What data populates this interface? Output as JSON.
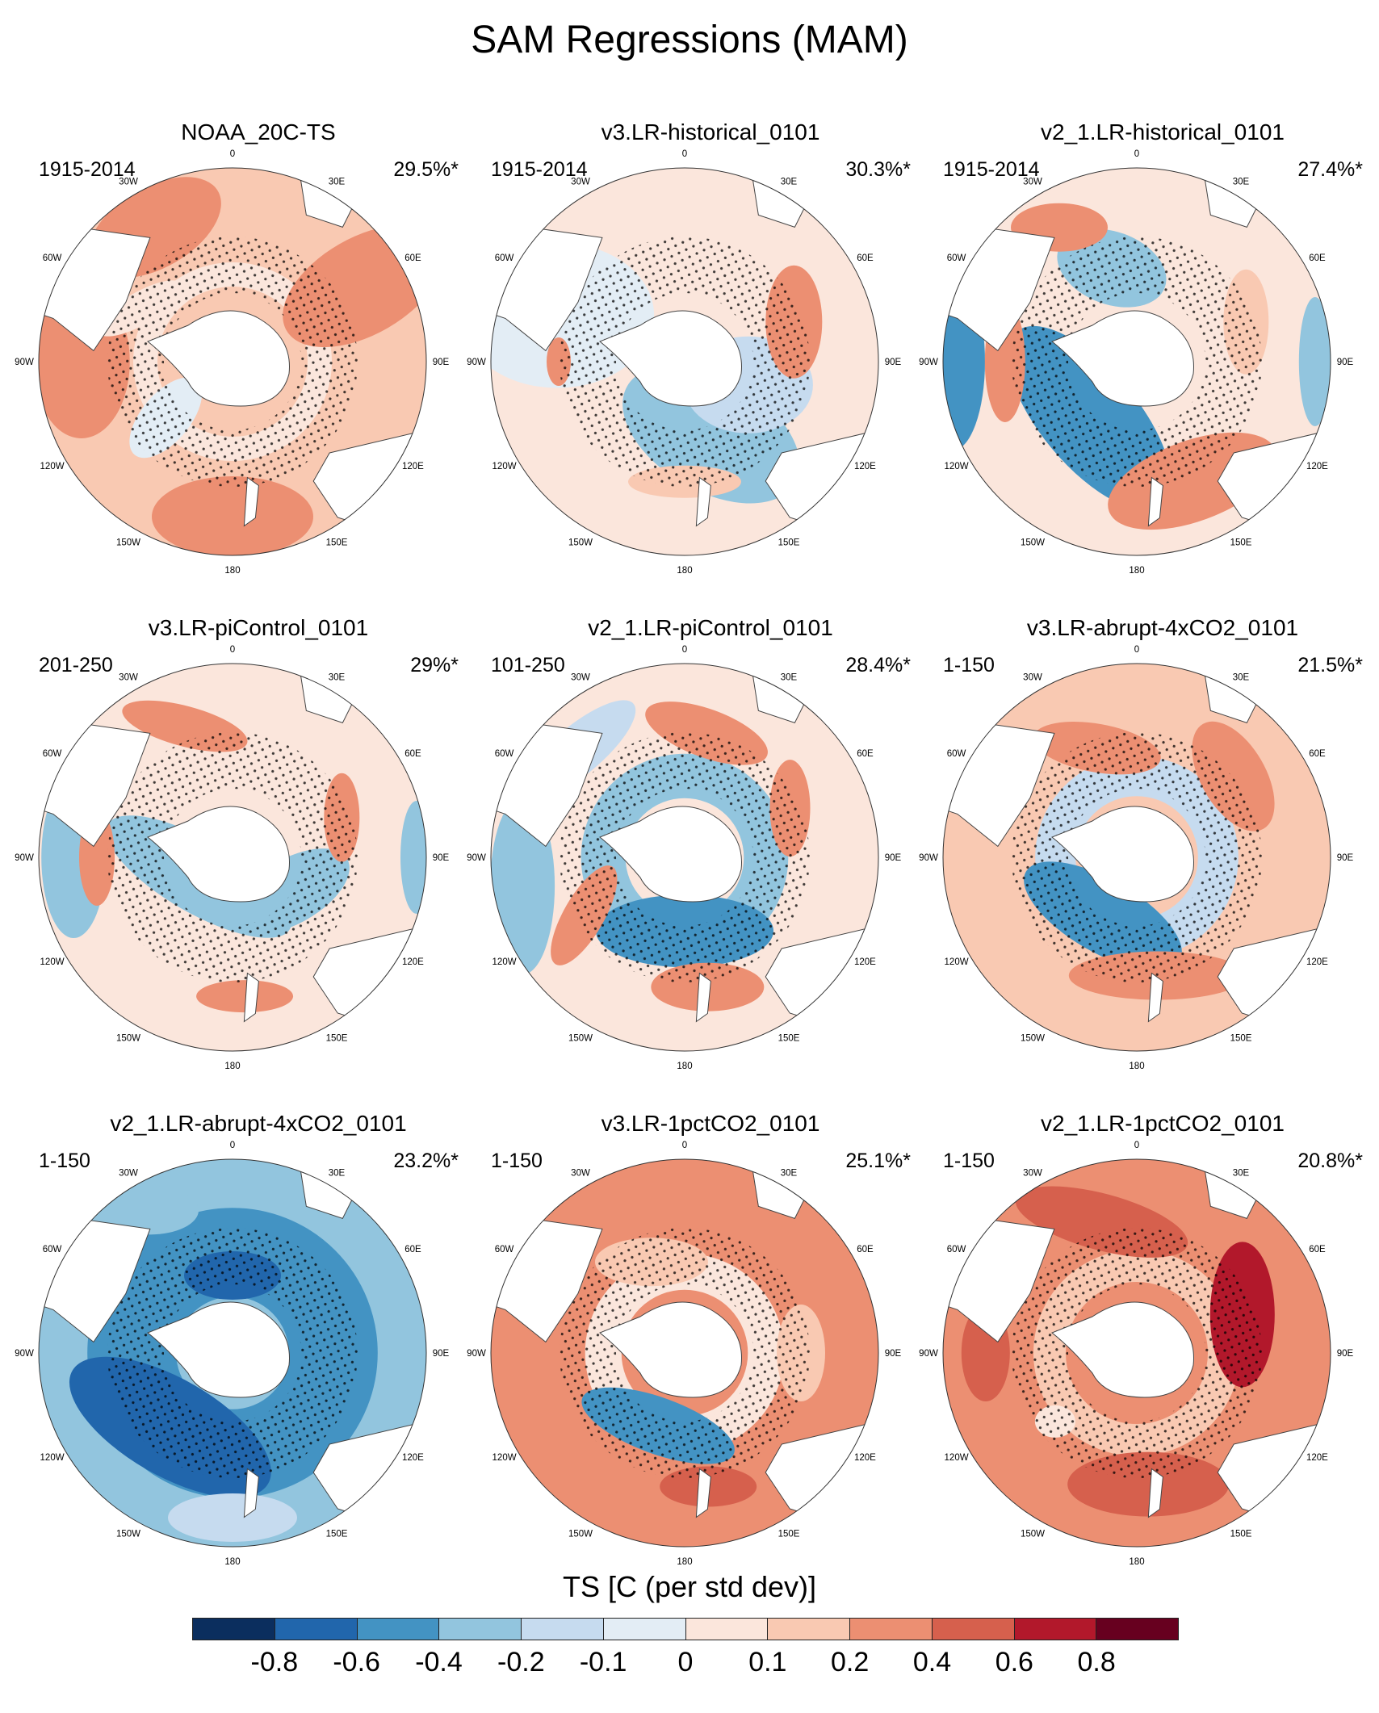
{
  "title": "SAM Regressions (MAM)",
  "lon_labels": [
    "0",
    "30E",
    "60E",
    "90E",
    "120E",
    "150E",
    "180",
    "150W",
    "120W",
    "90W",
    "60W",
    "30W"
  ],
  "panels": [
    {
      "title": "NOAA_20C-TS",
      "period": "1915-2014",
      "percent": "29.5%*",
      "pattern": "noaa"
    },
    {
      "title": "v3.LR-historical_0101",
      "period": "1915-2014",
      "percent": "30.3%*",
      "pattern": "v3hist"
    },
    {
      "title": "v2_1.LR-historical_0101",
      "period": "1915-2014",
      "percent": "27.4%*",
      "pattern": "v2hist"
    },
    {
      "title": "v3.LR-piControl_0101",
      "period": "201-250",
      "percent": "29%*",
      "pattern": "v3pi"
    },
    {
      "title": "v2_1.LR-piControl_0101",
      "period": "101-250",
      "percent": "28.4%*",
      "pattern": "v2pi"
    },
    {
      "title": "v3.LR-abrupt-4xCO2_0101",
      "period": "1-150",
      "percent": "21.5%*",
      "pattern": "v3abrupt"
    },
    {
      "title": "v2_1.LR-abrupt-4xCO2_0101",
      "period": "1-150",
      "percent": "23.2%*",
      "pattern": "v2abrupt"
    },
    {
      "title": "v3.LR-1pctCO2_0101",
      "period": "1-150",
      "percent": "25.1%*",
      "pattern": "v3pct"
    },
    {
      "title": "v2_1.LR-1pctCO2_0101",
      "period": "1-150",
      "percent": "20.8%*",
      "pattern": "v2pct"
    }
  ],
  "colorbar": {
    "title": "TS [C (per std dev)]",
    "colors": [
      "#0b2e5e",
      "#2166ac",
      "#4393c3",
      "#92c5de",
      "#c6dbef",
      "#e3edf5",
      "#fbe6dc",
      "#f9c9b2",
      "#ec8f72",
      "#d6604d",
      "#b2182b",
      "#67001f"
    ],
    "ticks": [
      "-0.8",
      "-0.6",
      "-0.4",
      "-0.2",
      "-0.1",
      "0",
      "0.1",
      "0.2",
      "0.4",
      "0.6",
      "0.8"
    ]
  }
}
